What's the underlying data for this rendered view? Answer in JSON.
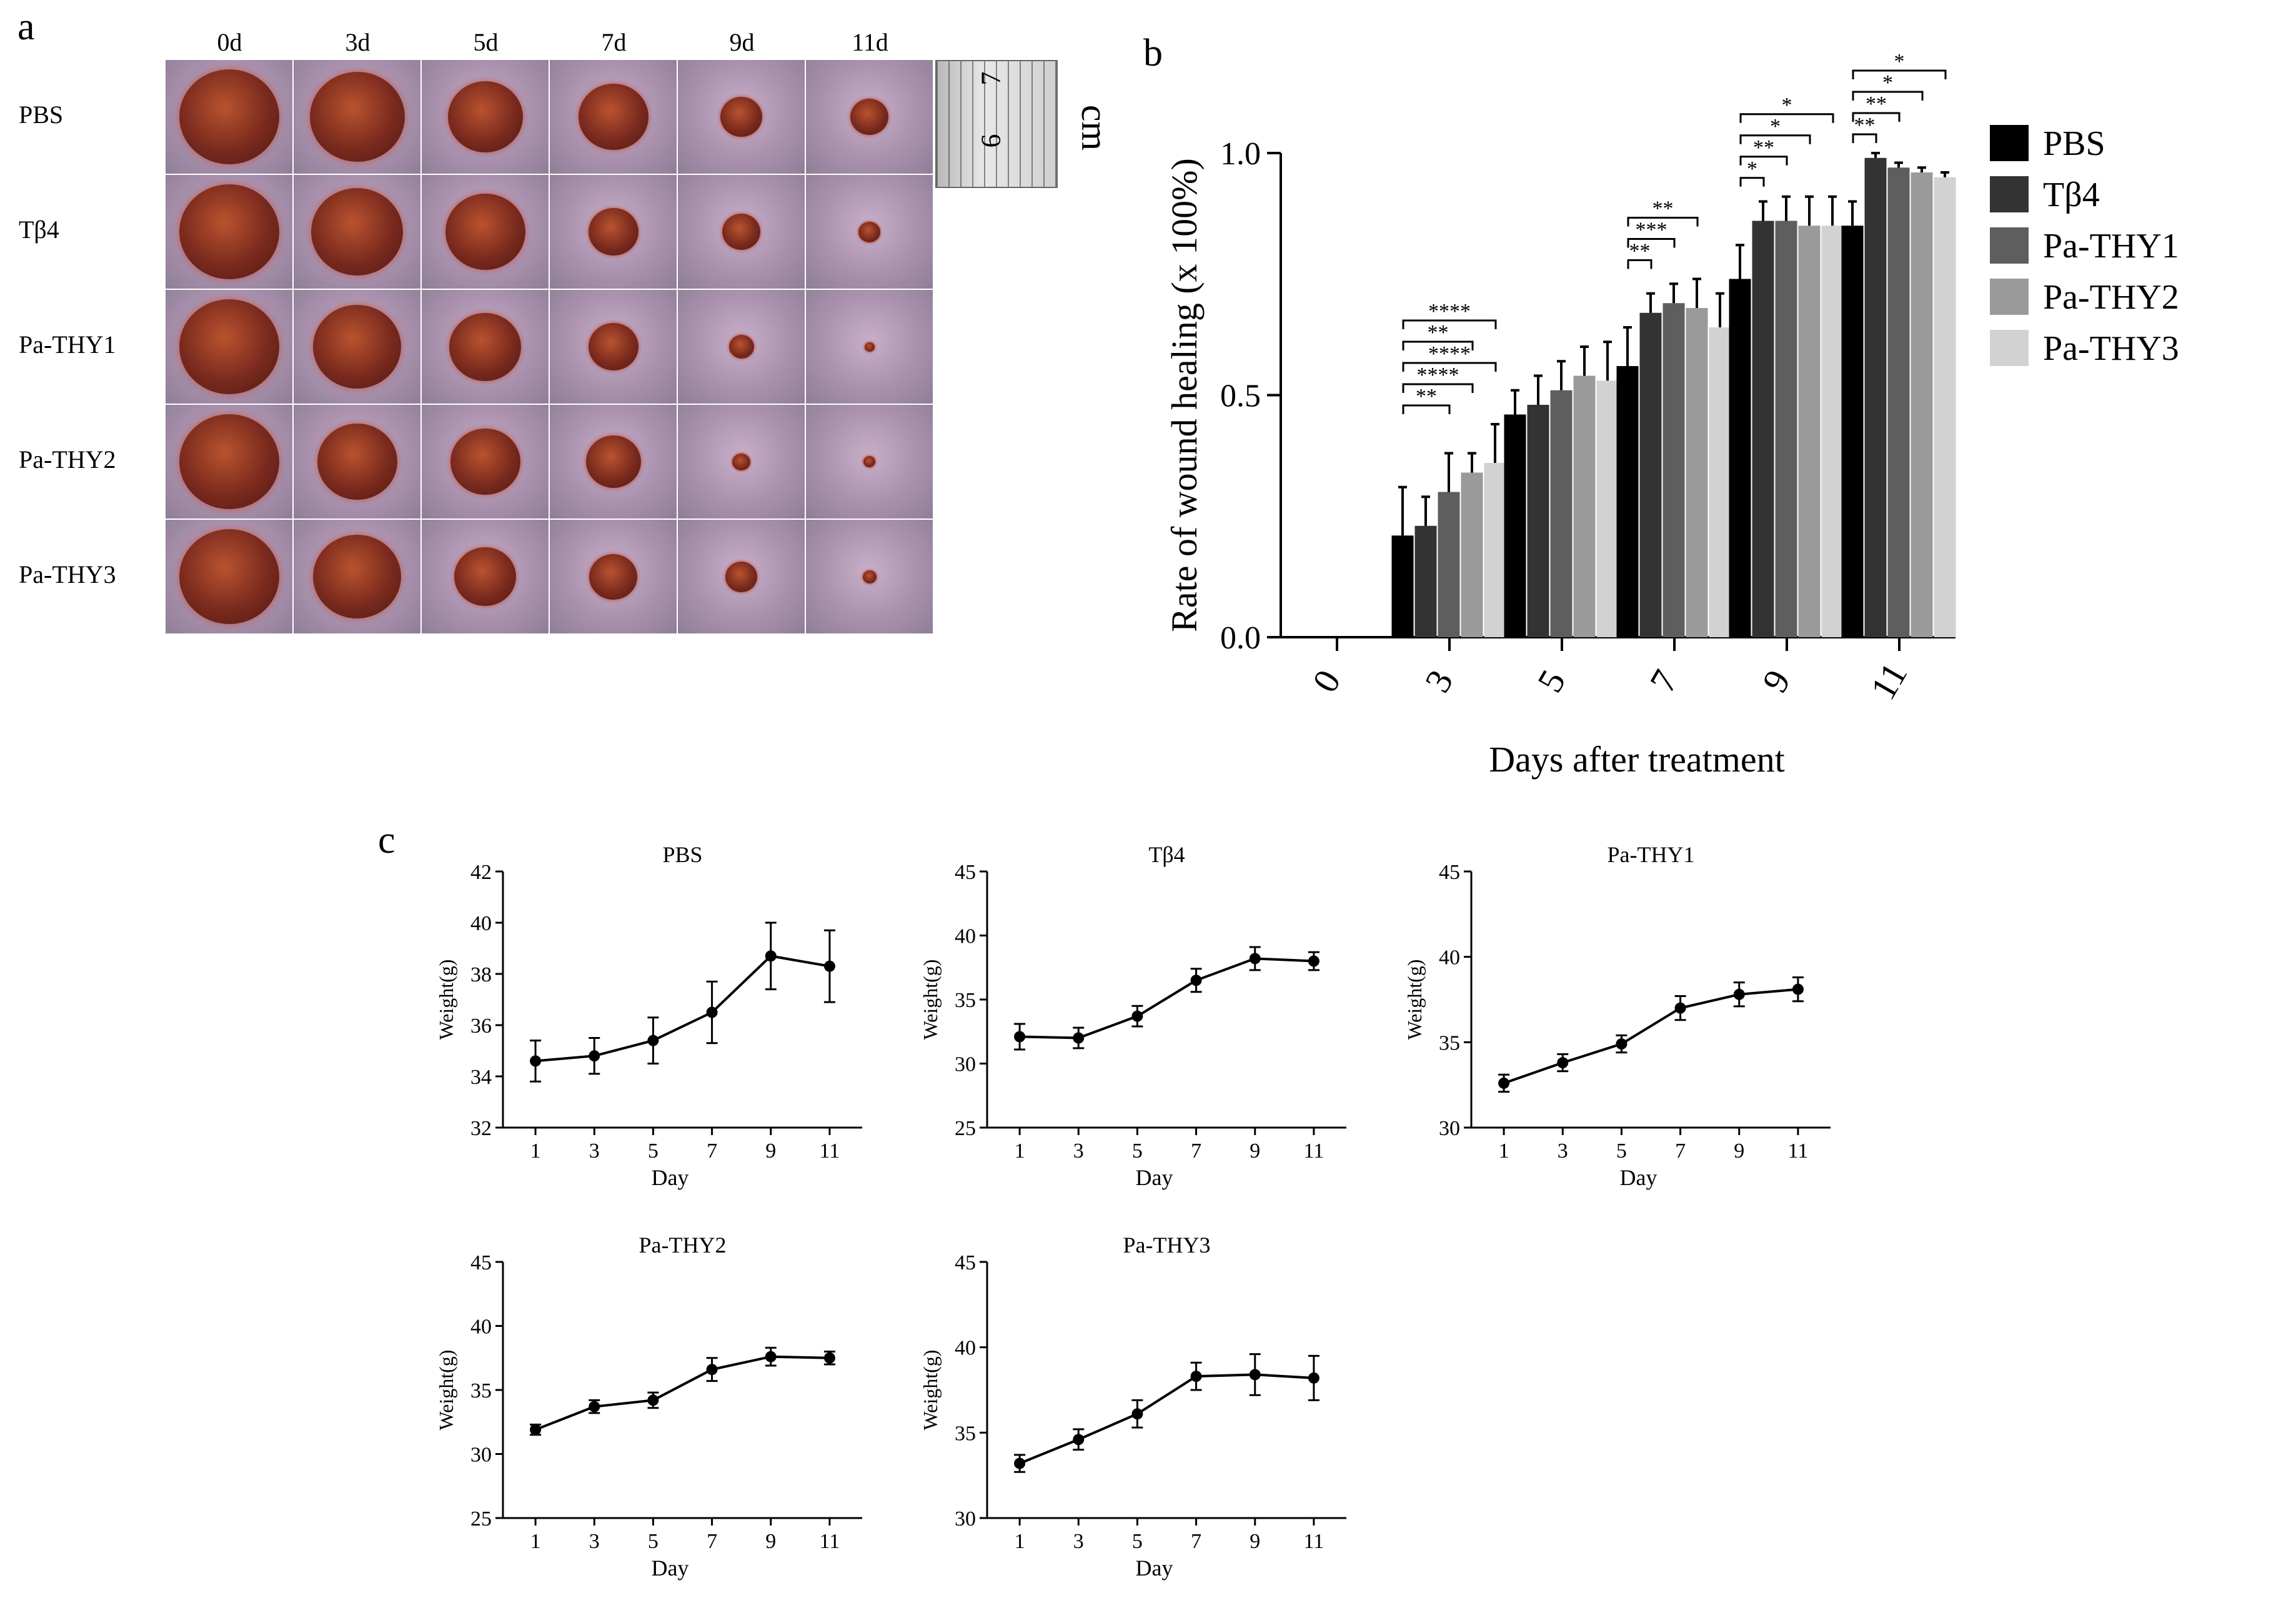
{
  "panel_letters": {
    "a": "a",
    "b": "b",
    "c": "c"
  },
  "panel_a": {
    "days": [
      "0d",
      "3d",
      "5d",
      "7d",
      "9d",
      "11d"
    ],
    "groups": [
      "PBS",
      "Tβ4",
      "Pa-THY1",
      "Pa-THY2",
      "Pa-THY3"
    ],
    "wound_radius_fraction": [
      [
        1.0,
        0.95,
        0.75,
        0.7,
        0.42,
        0.38
      ],
      [
        1.0,
        0.92,
        0.8,
        0.5,
        0.38,
        0.22
      ],
      [
        1.0,
        0.88,
        0.72,
        0.5,
        0.25,
        0.1
      ],
      [
        1.0,
        0.8,
        0.7,
        0.55,
        0.18,
        0.12
      ],
      [
        1.0,
        0.88,
        0.62,
        0.48,
        0.32,
        0.14
      ]
    ],
    "ruler_labels": [
      "7",
      "6"
    ],
    "ruler_unit": "cm"
  },
  "colors": {
    "series": [
      "#000000",
      "#333333",
      "#5e5e5e",
      "#9a9a9a",
      "#d2d2d2"
    ],
    "skin": "#b9a2bf",
    "wound": "#7a2a1e"
  },
  "chart_data": [
    {
      "type": "bar",
      "panel": "b",
      "categories": [
        "0",
        "3",
        "5",
        "7",
        "9",
        "11"
      ],
      "xlabel": "Days after treatment",
      "ylabel": "Rate of wound healing (x 100%)",
      "ylim": [
        0,
        1.0
      ],
      "yticks": [
        "0.0",
        "0.5",
        "1.0"
      ],
      "legend_position": "right",
      "series": [
        {
          "name": "PBS",
          "values": [
            0,
            0.21,
            0.46,
            0.56,
            0.74,
            0.85
          ],
          "errors": [
            0,
            0.1,
            0.05,
            0.08,
            0.07,
            0.05
          ]
        },
        {
          "name": "Tβ4",
          "values": [
            0,
            0.23,
            0.48,
            0.67,
            0.86,
            0.99
          ],
          "errors": [
            0,
            0.06,
            0.06,
            0.04,
            0.04,
            0.01
          ]
        },
        {
          "name": "Pa-THY1",
          "values": [
            0,
            0.3,
            0.51,
            0.69,
            0.86,
            0.97
          ],
          "errors": [
            0,
            0.08,
            0.06,
            0.04,
            0.05,
            0.01
          ]
        },
        {
          "name": "Pa-THY2",
          "values": [
            0,
            0.34,
            0.54,
            0.68,
            0.85,
            0.96
          ],
          "errors": [
            0,
            0.04,
            0.06,
            0.06,
            0.06,
            0.01
          ]
        },
        {
          "name": "Pa-THY3",
          "values": [
            0,
            0.36,
            0.53,
            0.64,
            0.85,
            0.95
          ],
          "errors": [
            0,
            0.08,
            0.08,
            0.07,
            0.06,
            0.01
          ]
        }
      ],
      "significance": [
        {
          "day": "3",
          "to": "Pa-THY1",
          "label": "**"
        },
        {
          "day": "3",
          "to": "Pa-THY2",
          "label": "****"
        },
        {
          "day": "3",
          "to": "Pa-THY3",
          "label": "****"
        },
        {
          "day": "3",
          "to": "Pa-THY2",
          "label": "**"
        },
        {
          "day": "3",
          "to": "Pa-THY3",
          "label": "****"
        },
        {
          "day": "7",
          "to": "Tβ4",
          "label": "**"
        },
        {
          "day": "7",
          "to": "Pa-THY1",
          "label": "***"
        },
        {
          "day": "7",
          "to": "Pa-THY2",
          "label": "**"
        },
        {
          "day": "9",
          "to": "Tβ4",
          "label": "*"
        },
        {
          "day": "9",
          "to": "Pa-THY1",
          "label": "**"
        },
        {
          "day": "9",
          "to": "Pa-THY2",
          "label": "*"
        },
        {
          "day": "9",
          "to": "Pa-THY3",
          "label": "*"
        },
        {
          "day": "11",
          "to": "Tβ4",
          "label": "**"
        },
        {
          "day": "11",
          "to": "Pa-THY1",
          "label": "**"
        },
        {
          "day": "11",
          "to": "Pa-THY2",
          "label": "*"
        },
        {
          "day": "11",
          "to": "Pa-THY3",
          "label": "*"
        }
      ]
    },
    {
      "type": "line",
      "panel": "c",
      "title": "PBS",
      "x": [
        1,
        3,
        5,
        7,
        9,
        11
      ],
      "values": [
        34.6,
        34.8,
        35.4,
        36.5,
        38.7,
        38.3
      ],
      "errors": [
        0.8,
        0.7,
        0.9,
        1.2,
        1.3,
        1.4
      ],
      "xlabel": "Day",
      "ylabel": "Weight(g)",
      "ylim": [
        32,
        42
      ],
      "yticks": [
        "32",
        "34",
        "36",
        "38",
        "40",
        "42"
      ],
      "xticks": [
        "1",
        "3",
        "5",
        "7",
        "9",
        "11"
      ]
    },
    {
      "type": "line",
      "panel": "c",
      "title": "Tβ4",
      "x": [
        1,
        3,
        5,
        7,
        9,
        11
      ],
      "values": [
        32.1,
        32.0,
        33.7,
        36.5,
        38.2,
        38.0
      ],
      "errors": [
        1.0,
        0.8,
        0.8,
        0.9,
        0.9,
        0.7
      ],
      "xlabel": "Day",
      "ylabel": "Weight(g)",
      "ylim": [
        25,
        45
      ],
      "yticks": [
        "25",
        "30",
        "35",
        "40",
        "45"
      ],
      "xticks": [
        "1",
        "3",
        "5",
        "7",
        "9",
        "11"
      ]
    },
    {
      "type": "line",
      "panel": "c",
      "title": "Pa-THY1",
      "x": [
        1,
        3,
        5,
        7,
        9,
        11
      ],
      "values": [
        32.6,
        33.8,
        34.9,
        37.0,
        37.8,
        38.1
      ],
      "errors": [
        0.5,
        0.5,
        0.5,
        0.7,
        0.7,
        0.7
      ],
      "xlabel": "Day",
      "ylabel": "Weight(g)",
      "ylim": [
        30,
        45
      ],
      "yticks": [
        "30",
        "35",
        "40",
        "45"
      ],
      "xticks": [
        "1",
        "3",
        "5",
        "7",
        "9",
        "11"
      ]
    },
    {
      "type": "line",
      "panel": "c",
      "title": "Pa-THY2",
      "x": [
        1,
        3,
        5,
        7,
        9,
        11
      ],
      "values": [
        31.9,
        33.7,
        34.2,
        36.6,
        37.6,
        37.5
      ],
      "errors": [
        0.4,
        0.5,
        0.6,
        0.9,
        0.7,
        0.5
      ],
      "xlabel": "Day",
      "ylabel": "Weight(g)",
      "ylim": [
        25,
        45
      ],
      "yticks": [
        "25",
        "30",
        "35",
        "40",
        "45"
      ],
      "xticks": [
        "1",
        "3",
        "5",
        "7",
        "9",
        "11"
      ]
    },
    {
      "type": "line",
      "panel": "c",
      "title": "Pa-THY3",
      "x": [
        1,
        3,
        5,
        7,
        9,
        11
      ],
      "values": [
        33.2,
        34.6,
        36.1,
        38.3,
        38.4,
        38.2
      ],
      "errors": [
        0.5,
        0.6,
        0.8,
        0.8,
        1.2,
        1.3
      ],
      "xlabel": "Day",
      "ylabel": "Weight(g)",
      "ylim": [
        30,
        45
      ],
      "yticks": [
        "30",
        "35",
        "40",
        "45"
      ],
      "xticks": [
        "1",
        "3",
        "5",
        "7",
        "9",
        "11"
      ]
    }
  ]
}
